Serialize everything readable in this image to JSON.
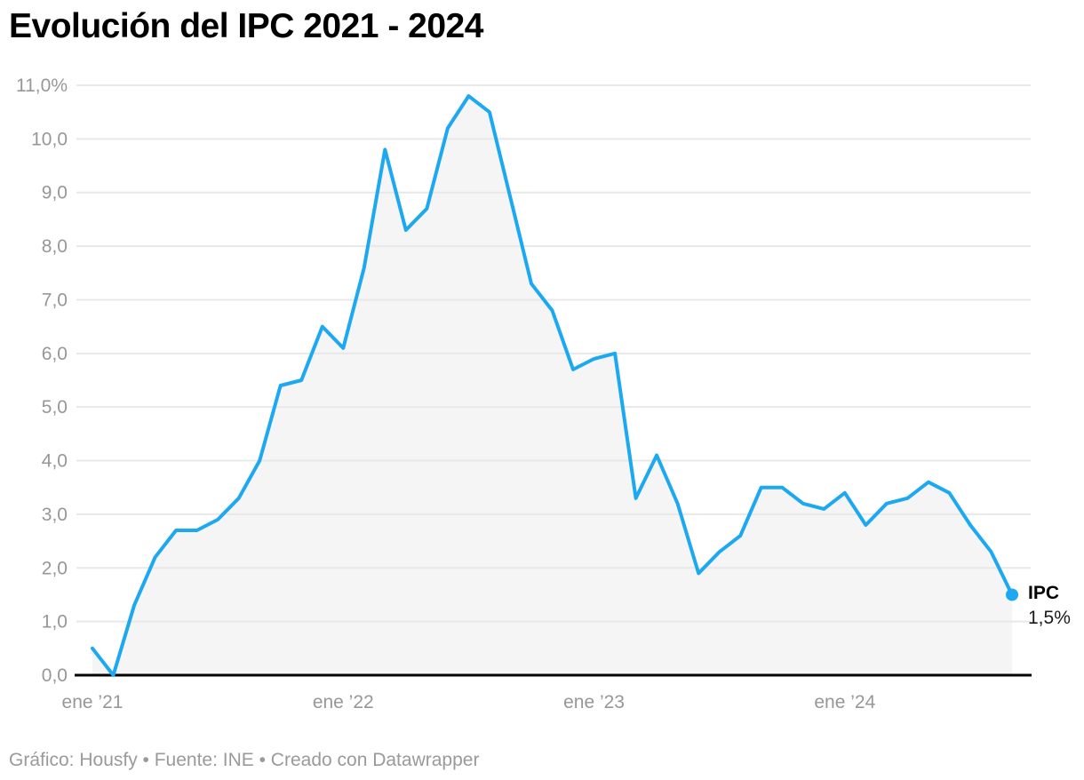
{
  "title": "Evolución del IPC 2021 - 2024",
  "footer": {
    "text": "Gráfico: Housfy • Fuente: INE • Creado con Datawrapper"
  },
  "end_label": {
    "series": "IPC",
    "value": "1,5%"
  },
  "colors": {
    "line": "#1da8f2",
    "area_fill": "#f5f5f5",
    "grid": "#e8e8e8",
    "axis": "#000000",
    "tick_text": "#979797",
    "title_text": "#000000",
    "footer_text": "#9a9a9a"
  },
  "chart_data": {
    "type": "line",
    "area_fill": true,
    "title": "Evolución del IPC 2021 - 2024",
    "series_name": "IPC",
    "unit": "%",
    "xlabel": "",
    "ylabel": "",
    "ylim": [
      0,
      11
    ],
    "grid": "horizontal",
    "legend": "none",
    "x": [
      "2021-01",
      "2021-02",
      "2021-03",
      "2021-04",
      "2021-05",
      "2021-06",
      "2021-07",
      "2021-08",
      "2021-09",
      "2021-10",
      "2021-11",
      "2021-12",
      "2022-01",
      "2022-02",
      "2022-03",
      "2022-04",
      "2022-05",
      "2022-06",
      "2022-07",
      "2022-08",
      "2022-09",
      "2022-10",
      "2022-11",
      "2022-12",
      "2023-01",
      "2023-02",
      "2023-03",
      "2023-04",
      "2023-05",
      "2023-06",
      "2023-07",
      "2023-08",
      "2023-09",
      "2023-10",
      "2023-11",
      "2023-12",
      "2024-01",
      "2024-02",
      "2024-03",
      "2024-04",
      "2024-05",
      "2024-06",
      "2024-07",
      "2024-08",
      "2024-09"
    ],
    "values": [
      0.5,
      0.0,
      1.3,
      2.2,
      2.7,
      2.7,
      2.9,
      3.3,
      4.0,
      5.4,
      5.5,
      6.5,
      6.1,
      7.6,
      9.8,
      8.3,
      8.7,
      10.2,
      10.8,
      10.5,
      8.9,
      7.3,
      6.8,
      5.7,
      5.9,
      6.0,
      3.3,
      4.1,
      3.2,
      1.9,
      2.3,
      2.6,
      3.5,
      3.5,
      3.2,
      3.1,
      3.4,
      2.8,
      3.2,
      3.3,
      3.6,
      3.4,
      2.8,
      2.3,
      1.5
    ],
    "last_value_label": "1,5%",
    "y_ticks": [
      {
        "value": 11,
        "label": "11,0%"
      },
      {
        "value": 10,
        "label": "10,0"
      },
      {
        "value": 9,
        "label": "9,0"
      },
      {
        "value": 8,
        "label": "8,0"
      },
      {
        "value": 7,
        "label": "7,0"
      },
      {
        "value": 6,
        "label": "6,0"
      },
      {
        "value": 5,
        "label": "5,0"
      },
      {
        "value": 4,
        "label": "4,0"
      },
      {
        "value": 3,
        "label": "3,0"
      },
      {
        "value": 2,
        "label": "2,0"
      },
      {
        "value": 1,
        "label": "1,0"
      },
      {
        "value": 0,
        "label": "0,0"
      }
    ],
    "x_ticks": [
      {
        "index": 0,
        "label": "ene ’21"
      },
      {
        "index": 12,
        "label": "ene ’22"
      },
      {
        "index": 24,
        "label": "ene ’23"
      },
      {
        "index": 36,
        "label": "ene ’24"
      }
    ]
  }
}
